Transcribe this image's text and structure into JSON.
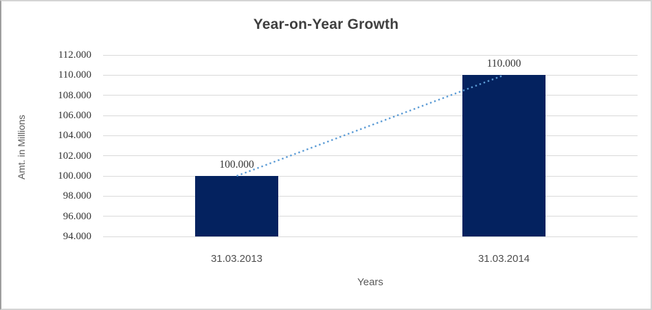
{
  "chart_data": {
    "type": "bar",
    "title": "Year-on-Year Growth",
    "xlabel": "Years",
    "ylabel": "Amt. in Millions",
    "categories": [
      "31.03.2013",
      "31.03.2014"
    ],
    "values": [
      100.0,
      110.0
    ],
    "value_labels": [
      "100.000",
      "110.000"
    ],
    "ylim": [
      94,
      112
    ],
    "ytick_step": 2,
    "ytick_labels": [
      "94.000",
      "96.000",
      "98.000",
      "100.000",
      "102.000",
      "104.000",
      "106.000",
      "108.000",
      "110.000",
      "112.000"
    ],
    "grid": true,
    "legend": "none",
    "bar_color": "#04225f",
    "gridline_color": "#d9d9d9",
    "trendline": {
      "style": "dotted",
      "color": "#5b9bd5",
      "from_category": 0,
      "to_category": 1
    }
  }
}
